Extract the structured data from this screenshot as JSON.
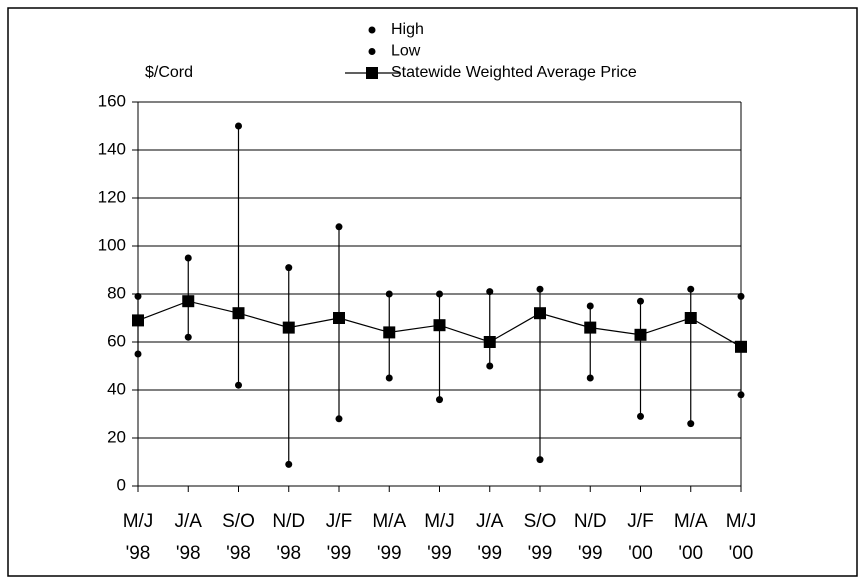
{
  "chart_data": {
    "type": "line",
    "y_label": "$/Cord",
    "categories": [
      [
        "M/J",
        "'98"
      ],
      [
        "J/A",
        "'98"
      ],
      [
        "S/O",
        "'98"
      ],
      [
        "N/D",
        "'98"
      ],
      [
        "J/F",
        "'99"
      ],
      [
        "M/A",
        "'99"
      ],
      [
        "M/J",
        "'99"
      ],
      [
        "J/A",
        "'99"
      ],
      [
        "S/O",
        "'99"
      ],
      [
        "N/D",
        "'99"
      ],
      [
        "J/F",
        "'00"
      ],
      [
        "M/A",
        "'00"
      ],
      [
        "M/J",
        "'00"
      ]
    ],
    "series": [
      {
        "name": "High",
        "color": "#000000",
        "marker": "circle",
        "values": [
          79,
          95,
          150,
          91,
          108,
          80,
          80,
          81,
          82,
          75,
          77,
          82,
          79
        ]
      },
      {
        "name": "Low",
        "color": "#000000",
        "marker": "circle",
        "values": [
          55,
          62,
          42,
          9,
          28,
          45,
          36,
          50,
          11,
          45,
          29,
          26,
          38
        ]
      },
      {
        "name": "Statewide Weighted Average Price",
        "color": "#000000",
        "marker": "square",
        "line": true,
        "values": [
          69,
          77,
          72,
          66,
          70,
          64,
          67,
          60,
          72,
          66,
          63,
          70,
          58
        ]
      }
    ],
    "hilo_lines": true,
    "ylim": [
      0,
      160
    ],
    "yticks": [
      0,
      20,
      40,
      60,
      80,
      100,
      120,
      140,
      160
    ],
    "grid": true
  }
}
